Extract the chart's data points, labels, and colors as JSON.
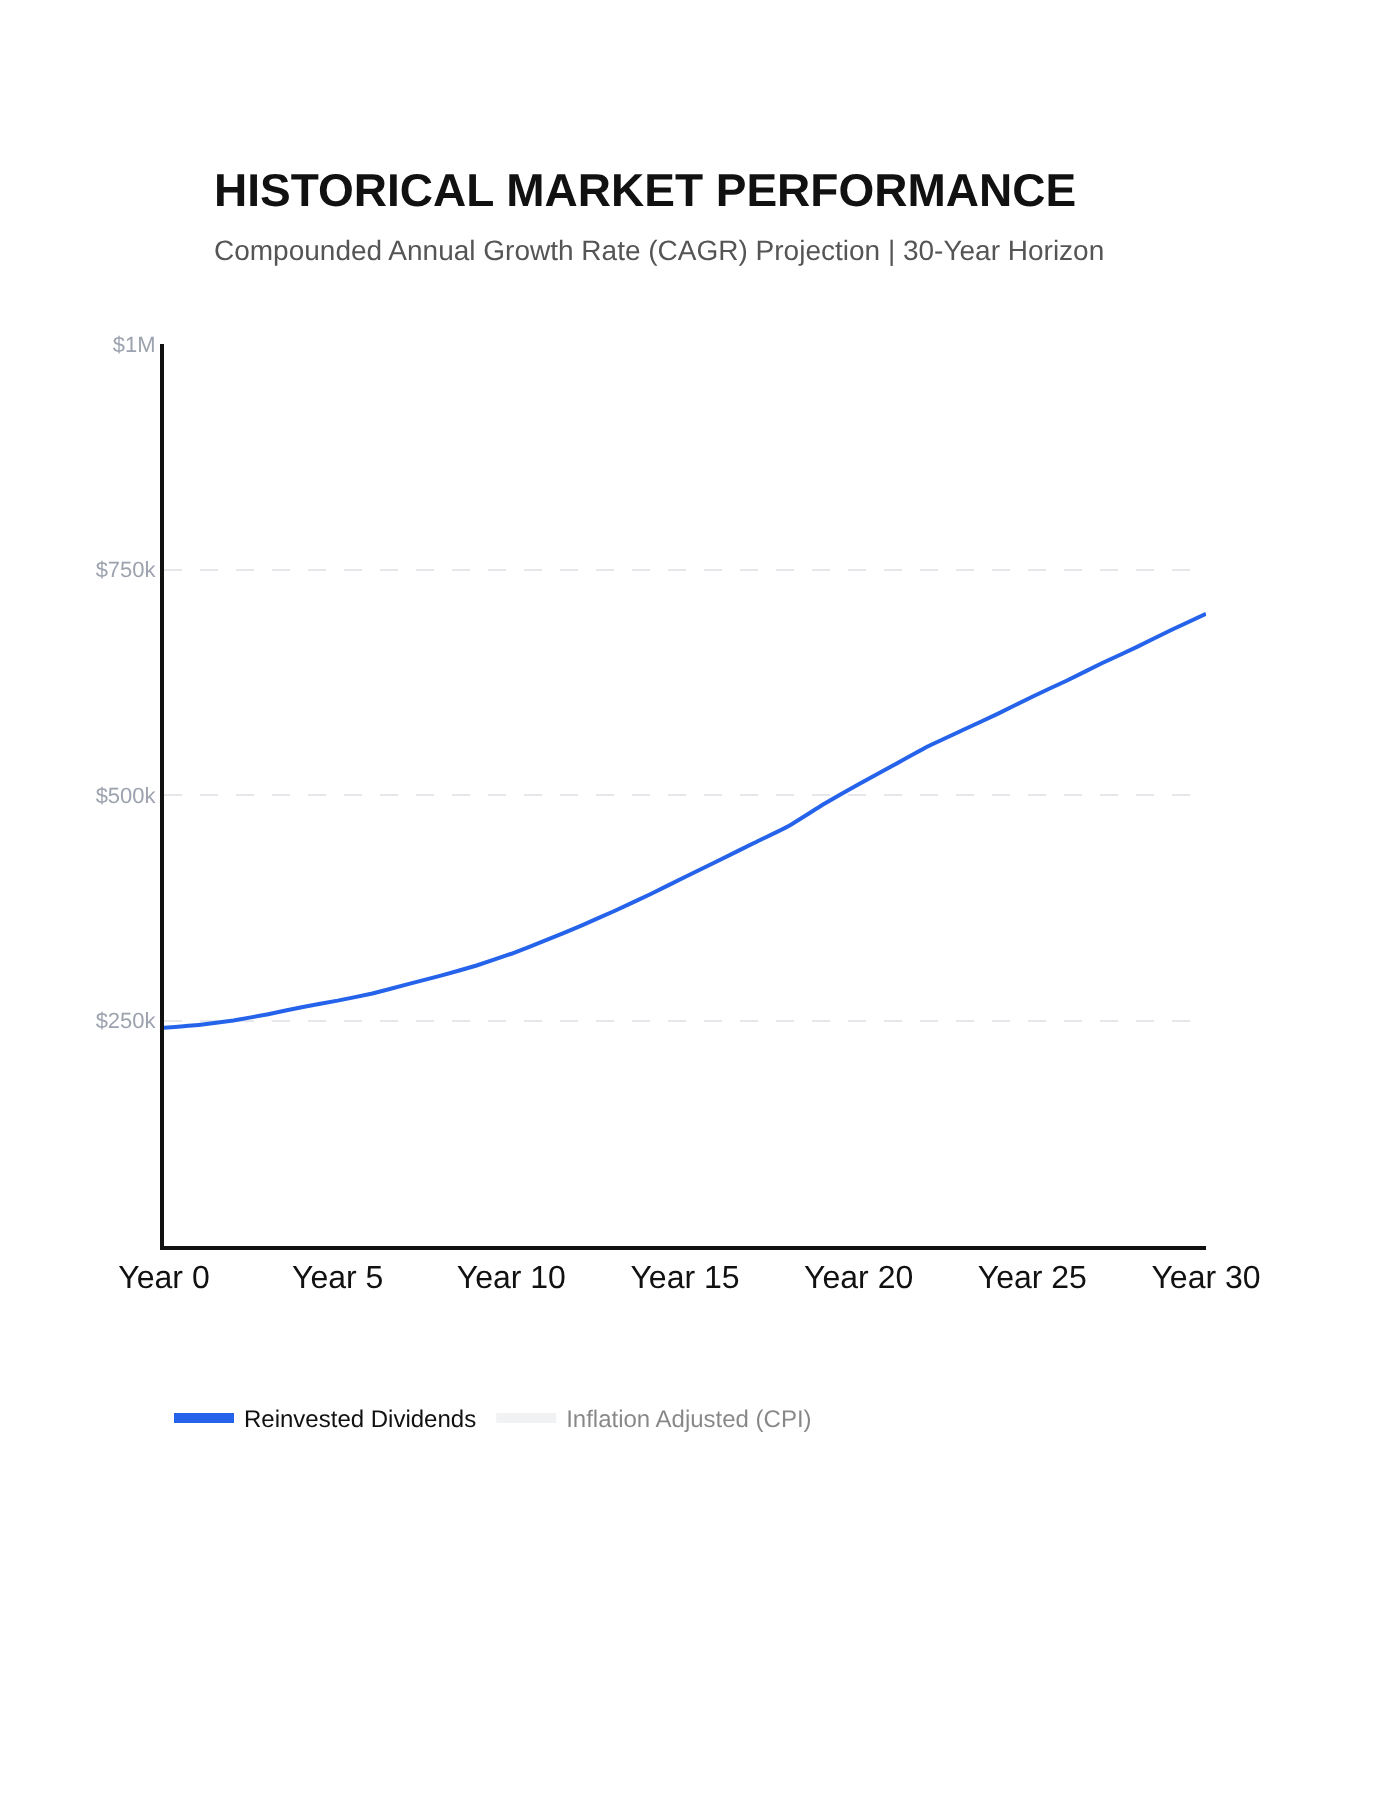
{
  "chart_data": {
    "type": "line",
    "title": "HISTORICAL MARKET PERFORMANCE",
    "subtitle": "Compounded Annual Growth Rate (CAGR) Projection | 30-Year Horizon",
    "categories": [
      "Year 0",
      null,
      null,
      null,
      null,
      "Year 5",
      null,
      null,
      null,
      null,
      "Year 10",
      null,
      null,
      null,
      null,
      "Year 15",
      null,
      null,
      null,
      null,
      "Year 20",
      null,
      null,
      null,
      null,
      "Year 25",
      null,
      null,
      null,
      null,
      "Year 30"
    ],
    "series": [
      {
        "name": "Reinvested Dividends",
        "color": "#2563eb",
        "values": [
          242000,
          245000,
          250000,
          257000,
          265000,
          272000,
          280000,
          290000,
          300000,
          311000,
          324000,
          339000,
          355000,
          372000,
          390000,
          409000,
          428000,
          447000,
          466000,
          490000,
          512000,
          533000,
          554000,
          572000,
          590000,
          609000,
          627000,
          646000,
          664000,
          683000,
          701000
        ]
      },
      {
        "name": "Inflation Adjusted (CPI)",
        "color": "#e5e7eb",
        "values": [
          null,
          null,
          null,
          null,
          null,
          null,
          null,
          null,
          null,
          null,
          null,
          null,
          null,
          null,
          null,
          null,
          null,
          null,
          null,
          null,
          null,
          null,
          null,
          null,
          null,
          null,
          null,
          null,
          null,
          null,
          null
        ]
      }
    ],
    "ylim": [
      0,
      1000000
    ],
    "yticks": [
      {
        "value": 0,
        "label": null
      },
      {
        "value": 250000,
        "label": "$250k"
      },
      {
        "value": 500000,
        "label": "$500k"
      },
      {
        "value": 750000,
        "label": "$750k"
      },
      {
        "value": 1000000,
        "label": "$1M"
      }
    ],
    "grid": "y",
    "legend": "bottom left",
    "marker": "none",
    "line_style": "solid"
  }
}
